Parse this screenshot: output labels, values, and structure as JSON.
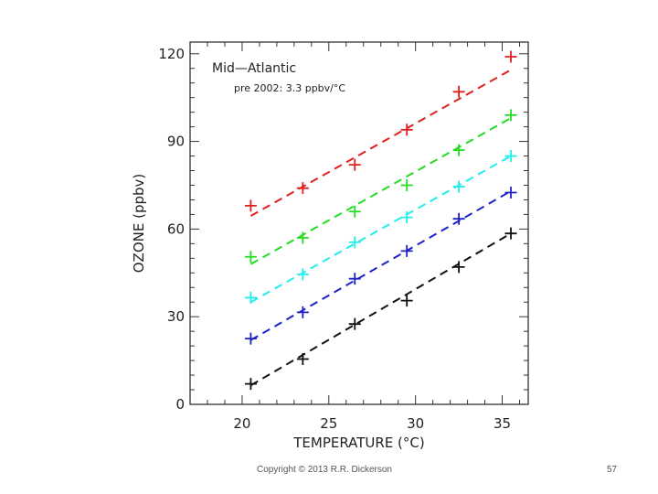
{
  "chart_data": {
    "type": "scatter",
    "title": "Mid—Atlantic",
    "subtitle": "pre 2002: 3.3 ppbv/°C",
    "xlabel": "TEMPERATURE (°C)",
    "ylabel": "OZONE (ppbv)",
    "xlim": [
      17,
      36.5
    ],
    "ylim": [
      0,
      124
    ],
    "xticks": [
      20,
      25,
      30,
      35
    ],
    "yticks": [
      0,
      30,
      60,
      90,
      120
    ],
    "x": [
      20.5,
      23.5,
      26.5,
      29.5,
      32.5,
      35.5
    ],
    "series": [
      {
        "name": "red",
        "color": "#e02020",
        "values": [
          68,
          74,
          82,
          94,
          107,
          119
        ],
        "fit": [
          64.5,
          114.5
        ]
      },
      {
        "name": "green",
        "color": "#22dd22",
        "values": [
          50.5,
          57,
          66,
          75,
          87,
          99
        ],
        "fit": [
          48,
          98
        ]
      },
      {
        "name": "cyan",
        "color": "#22eeee",
        "values": [
          36.5,
          44.5,
          55.5,
          64,
          74.5,
          85
        ],
        "fit": [
          35,
          85
        ]
      },
      {
        "name": "blue",
        "color": "#1c22c8",
        "values": [
          22.5,
          31.5,
          43,
          52.5,
          63.5,
          72.5
        ],
        "fit": [
          22,
          73
        ]
      },
      {
        "name": "black",
        "color": "#111111",
        "values": [
          7,
          15.5,
          27.5,
          35.5,
          47,
          58.5
        ],
        "fit": [
          6.5,
          58.5
        ]
      }
    ]
  },
  "footer": {
    "copyright": "Copyright © 2013 R.R. Dickerson",
    "page_number": "57"
  }
}
